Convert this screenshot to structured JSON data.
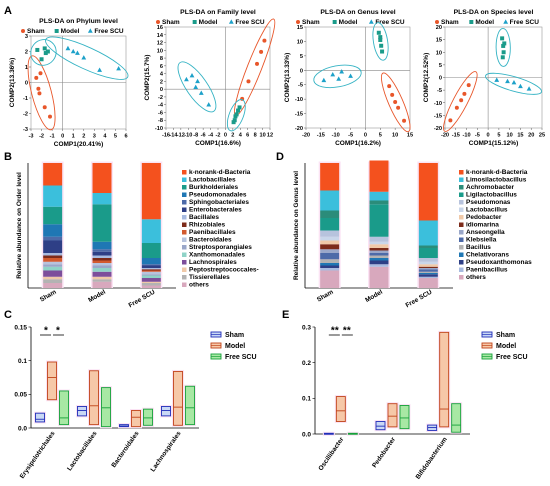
{
  "panel_letters": [
    "A",
    "B",
    "C",
    "D",
    "E"
  ],
  "chart_data": [
    {
      "id": "pls-phylum",
      "type": "scatter",
      "title": "PLS-DA on Phylum level",
      "xlabel": "COMP1(20.41%)",
      "ylabel": "COMP2(13.36%)",
      "xlim": [
        -3,
        6
      ],
      "ylim": [
        -3,
        3
      ],
      "xticks": [
        -3,
        -2,
        -1,
        0,
        1,
        2,
        3,
        4,
        5,
        6
      ],
      "yticks": [
        -3,
        -2,
        -1,
        0,
        1,
        2,
        3
      ],
      "legend": [
        "Sham",
        "Model",
        "Free SCU"
      ],
      "series": [
        {
          "name": "Sham",
          "marker": "circle",
          "points": [
            [
              -2.1,
              0.6
            ],
            [
              -2.5,
              0.3
            ],
            [
              -2.2,
              -0.7
            ],
            [
              -1.2,
              -2.2
            ],
            [
              -1.7,
              -1.6
            ],
            [
              -2.3,
              -0.4
            ]
          ]
        },
        {
          "name": "Model",
          "marker": "square",
          "points": [
            [
              -2.4,
              2.1
            ],
            [
              -1.7,
              2.2
            ],
            [
              -1.6,
              1.9
            ],
            [
              -2.0,
              1.5
            ],
            [
              -1.4,
              2.0
            ]
          ]
        },
        {
          "name": "Free SCU",
          "marker": "triangle",
          "points": [
            [
              1.0,
              2.0
            ],
            [
              1.4,
              1.9
            ],
            [
              2.0,
              1.6
            ],
            [
              3.5,
              0.8
            ],
            [
              5.3,
              0.9
            ],
            [
              0.5,
              2.2
            ]
          ]
        }
      ]
    },
    {
      "id": "pls-family",
      "type": "scatter",
      "title": "PLS-DA on Family level",
      "xlabel": "COMP1(16.6%)",
      "ylabel": "COMP2(15.7%)",
      "xlim": [
        -16,
        12
      ],
      "ylim": [
        -10,
        16
      ],
      "xticks": [
        -16,
        -14,
        -12,
        -10,
        -8,
        -6,
        -4,
        -2,
        0,
        2,
        4,
        6,
        8,
        10,
        12
      ],
      "yticks": [
        -10,
        -8,
        -6,
        -4,
        -2,
        0,
        2,
        4,
        6,
        8,
        10,
        12,
        14,
        16
      ],
      "legend": [
        "Sham",
        "Model",
        "Free SCU"
      ],
      "series": [
        {
          "name": "Sham",
          "marker": "circle",
          "points": [
            [
              4.5,
              -2.5
            ],
            [
              6.2,
              2.0
            ],
            [
              8.5,
              6.5
            ],
            [
              10.5,
              12.5
            ],
            [
              9.6,
              9.6
            ]
          ]
        },
        {
          "name": "Model",
          "marker": "square",
          "points": [
            [
              2.5,
              -8.0
            ],
            [
              3.0,
              -6.5
            ],
            [
              3.4,
              -5.5
            ],
            [
              2.7,
              -7.0
            ],
            [
              3.8,
              -4.7
            ],
            [
              2.2,
              -8.5
            ]
          ]
        },
        {
          "name": "Free SCU",
          "marker": "triangle",
          "points": [
            [
              -10.5,
              2.5
            ],
            [
              -9.0,
              3.5
            ],
            [
              -7.5,
              2.0
            ],
            [
              -6.5,
              -1.0
            ],
            [
              -4.5,
              -4.0
            ],
            [
              -8.0,
              0.5
            ]
          ]
        }
      ]
    },
    {
      "id": "pls-genus",
      "type": "scatter",
      "title": "PLS-DA on Genus level",
      "xlabel": "COMP1(16.2%)",
      "ylabel": "COMP2(13.33%)",
      "xlim": [
        -20,
        15
      ],
      "ylim": [
        -20,
        15
      ],
      "xticks": [
        -20,
        -15,
        -10,
        -5,
        0,
        5,
        10,
        15
      ],
      "yticks": [
        -20,
        -15,
        -10,
        -5,
        0,
        5,
        10,
        15
      ],
      "legend": [
        "Sham",
        "Model",
        "Free SCU"
      ],
      "series": [
        {
          "name": "Sham",
          "marker": "circle",
          "points": [
            [
              8.0,
              -5.5
            ],
            [
              9.0,
              -8.5
            ],
            [
              11.0,
              -13.0
            ],
            [
              13.0,
              -17.5
            ],
            [
              10.0,
              -11.0
            ]
          ]
        },
        {
          "name": "Model",
          "marker": "square",
          "points": [
            [
              4.5,
              13.0
            ],
            [
              5.0,
              10.5
            ],
            [
              5.3,
              8.5
            ],
            [
              5.6,
              6.5
            ],
            [
              5.0,
              11.5
            ]
          ]
        },
        {
          "name": "Free SCU",
          "marker": "triangle",
          "points": [
            [
              -14.0,
              -3.5
            ],
            [
              -11.0,
              -1.5
            ],
            [
              -8.0,
              -0.5
            ],
            [
              -5.0,
              -2.0
            ],
            [
              -9.0,
              -3.0
            ]
          ]
        }
      ]
    },
    {
      "id": "pls-species",
      "type": "scatter",
      "title": "PLS-DA on Species level",
      "xlabel": "COMP1(15.12%)",
      "ylabel": "COMP2(12.52%)",
      "xlim": [
        -20,
        25
      ],
      "ylim": [
        -20,
        20
      ],
      "xticks": [
        -20,
        -15,
        -10,
        -5,
        0,
        5,
        10,
        15,
        20,
        25
      ],
      "yticks": [
        -20,
        -15,
        -10,
        -5,
        0,
        5,
        10,
        15,
        20
      ],
      "legend": [
        "Sham",
        "Model",
        "Free SCU"
      ],
      "series": [
        {
          "name": "Sham",
          "marker": "circle",
          "points": [
            [
              -9.0,
              -3.0
            ],
            [
              -11.0,
              -6.5
            ],
            [
              -14.5,
              -12.0
            ],
            [
              -17.5,
              -17.0
            ],
            [
              -12.5,
              -9.0
            ]
          ]
        },
        {
          "name": "Model",
          "marker": "square",
          "points": [
            [
              6.5,
              15.5
            ],
            [
              7.0,
              12.5
            ],
            [
              7.2,
              10.0
            ],
            [
              6.8,
              8.0
            ],
            [
              7.5,
              13.5
            ]
          ]
        },
        {
          "name": "Free SCU",
          "marker": "triangle",
          "points": [
            [
              4.0,
              -1.0
            ],
            [
              9.0,
              -1.5
            ],
            [
              15.0,
              -3.5
            ],
            [
              19.0,
              -4.5
            ],
            [
              12.0,
              -2.0
            ]
          ]
        }
      ]
    },
    {
      "id": "bar-order",
      "type": "bar",
      "stacked": true,
      "ylabel": "Relative abundance on Order level",
      "categories": [
        "Sham",
        "Model",
        "Free SCU"
      ],
      "ylim": [
        0,
        1
      ],
      "series": [
        {
          "name": "others",
          "color": "#d8a8bd",
          "values": [
            0.04,
            0.05,
            0.02
          ]
        },
        {
          "name": "Tissierellales",
          "color": "#b3b3b3",
          "values": [
            0.03,
            0.02,
            0.02
          ]
        },
        {
          "name": "Peptostreptococcales-",
          "color": "#f0c9a8",
          "values": [
            0.02,
            0.02,
            0.01
          ]
        },
        {
          "name": "Lachnospirales",
          "color": "#7d4e9b",
          "values": [
            0.05,
            0.04,
            0.03
          ]
        },
        {
          "name": "Xanthomonadales",
          "color": "#8fd3c7",
          "values": [
            0.03,
            0.03,
            0.02
          ]
        },
        {
          "name": "Streptosporangiales",
          "color": "#9aa7c9",
          "values": [
            0.02,
            0.02,
            0.01
          ]
        },
        {
          "name": "Bacteroidales",
          "color": "#b7c3dd",
          "values": [
            0.02,
            0.02,
            0.02
          ]
        },
        {
          "name": "Paenibacillales",
          "color": "#d25a2e",
          "values": [
            0.03,
            0.02,
            0.01
          ]
        },
        {
          "name": "Rhizobiales",
          "color": "#7d2b1a",
          "values": [
            0.02,
            0.02,
            0.01
          ]
        },
        {
          "name": "Bacillales",
          "color": "#a8bbe0",
          "values": [
            0.02,
            0.02,
            0.01
          ]
        },
        {
          "name": "Enterobacterales",
          "color": "#2e3f86",
          "values": [
            0.1,
            0.03,
            0.02
          ]
        },
        {
          "name": "Sphingobacteriales",
          "color": "#4d6aa8",
          "values": [
            0.03,
            0.02,
            0.01
          ]
        },
        {
          "name": "Pseudomonadales",
          "color": "#1f77b4",
          "values": [
            0.1,
            0.06,
            0.05
          ]
        },
        {
          "name": "Burkholderiales",
          "color": "#1a9b8a",
          "values": [
            0.14,
            0.3,
            0.12
          ]
        },
        {
          "name": "Lactobacillales",
          "color": "#3bbfdc",
          "values": [
            0.17,
            0.09,
            0.19
          ]
        },
        {
          "name": "k-norank-d-Bacteria",
          "color": "#f4511e",
          "values": [
            0.18,
            0.24,
            0.45
          ]
        }
      ],
      "legend_order": [
        "k-norank-d-Bacteria",
        "Lactobacillales",
        "Burkholderiales",
        "Pseudomonadales",
        "Sphingobacteriales",
        "Enterobacterales",
        "Bacillales",
        "Rhizobiales",
        "Paenibacillales",
        "Bacteroidales",
        "Streptosporangiales",
        "Xanthomonadales",
        "Lachnospirales",
        "Peptostreptococcales-",
        "Tissierellales",
        "others"
      ]
    },
    {
      "id": "bar-genus",
      "type": "bar",
      "stacked": true,
      "ylabel": "Relative abundance on Genus level",
      "categories": [
        "Sham",
        "Model",
        "Free SCU"
      ],
      "ylim": [
        0,
        1
      ],
      "series": [
        {
          "name": "others",
          "color": "#d8a8bd",
          "values": [
            0.14,
            0.17,
            0.08
          ]
        },
        {
          "name": "Paenibacillus",
          "color": "#a8bbe0",
          "values": [
            0.02,
            0.02,
            0.01
          ]
        },
        {
          "name": "Pseudoxanthomonas",
          "color": "#2e3f86",
          "values": [
            0.02,
            0.03,
            0.02
          ]
        },
        {
          "name": "Chelativorans",
          "color": "#1f77b4",
          "values": [
            0.02,
            0.02,
            0.01
          ]
        },
        {
          "name": "Bacillus",
          "color": "#b3b3b3",
          "values": [
            0.03,
            0.02,
            0.01
          ]
        },
        {
          "name": "Klebsiella",
          "color": "#4d6aa8",
          "values": [
            0.05,
            0.02,
            0.02
          ]
        },
        {
          "name": "Anseongella",
          "color": "#9aa7c9",
          "values": [
            0.03,
            0.02,
            0.01
          ]
        },
        {
          "name": "idiomarina",
          "color": "#7d2b1a",
          "values": [
            0.04,
            0.02,
            0.01
          ]
        },
        {
          "name": "Pedobacter",
          "color": "#f0c9a8",
          "values": [
            0.03,
            0.03,
            0.02
          ]
        },
        {
          "name": "Lactobacillus",
          "color": "#c9d6ea",
          "values": [
            0.03,
            0.02,
            0.02
          ]
        },
        {
          "name": "Pseudomonas",
          "color": "#b7c3dd",
          "values": [
            0.05,
            0.04,
            0.03
          ]
        },
        {
          "name": "Ligilactobacillus",
          "color": "#1a9b8a",
          "values": [
            0.1,
            0.26,
            0.08
          ]
        },
        {
          "name": "Achromobacter",
          "color": "#2b8c7a",
          "values": [
            0.06,
            0.03,
            0.02
          ]
        },
        {
          "name": "Limosilactobacillus",
          "color": "#3bbfdc",
          "values": [
            0.16,
            0.07,
            0.2
          ]
        },
        {
          "name": "k-norank-d-Bacteria",
          "color": "#f4511e",
          "values": [
            0.22,
            0.25,
            0.46
          ]
        }
      ],
      "legend_order": [
        "k-norank-d-Bacteria",
        "Limosilactobacillus",
        "Achromobacter",
        "Ligilactobacillus",
        "Pseudomonas",
        "Lactobacillus",
        "Pedobacter",
        "idiomarina",
        "Anseongella",
        "Klebsiella",
        "Bacillus",
        "Chelativorans",
        "Pseudoxanthomonas",
        "Paenibacillus",
        "others"
      ]
    },
    {
      "id": "box-order",
      "type": "box",
      "categories": [
        "Erysipelotrichales",
        "Lactobacillales",
        "Bacteroidales",
        "Lachnospirales"
      ],
      "ylim": [
        0,
        0.15
      ],
      "yticks": [
        0.0,
        0.05,
        0.1,
        0.15
      ],
      "legend": [
        "Sham",
        "Model",
        "Free SCU"
      ],
      "series": [
        {
          "name": "Sham",
          "values": [
            [
              0.009,
              0.013,
              0.022
            ],
            [
              0.018,
              0.026,
              0.032
            ],
            [
              0.002,
              0.003,
              0.005
            ],
            [
              0.018,
              0.026,
              0.032
            ]
          ]
        },
        {
          "name": "Model",
          "values": [
            [
              0.042,
              0.075,
              0.098
            ],
            [
              0.005,
              0.033,
              0.085
            ],
            [
              0.002,
              0.016,
              0.026
            ],
            [
              0.004,
              0.031,
              0.084
            ]
          ]
        },
        {
          "name": "Free SCU",
          "values": [
            [
              0.005,
              0.015,
              0.055
            ],
            [
              0.002,
              0.03,
              0.06
            ],
            [
              0.004,
              0.015,
              0.028
            ],
            [
              0.005,
              0.03,
              0.062
            ]
          ]
        }
      ],
      "annotations": [
        "*",
        "*"
      ]
    },
    {
      "id": "box-genus",
      "type": "box",
      "categories": [
        "Oscillibacter",
        "Pedobacter",
        "Bifidobacterium"
      ],
      "ylim": [
        0,
        0.3
      ],
      "yticks": [
        0.0,
        0.1,
        0.2,
        0.3
      ],
      "legend": [
        "Sham",
        "Model",
        "Free SCU"
      ],
      "series": [
        {
          "name": "Sham",
          "values": [
            [
              0.0,
              0.0,
              0.002
            ],
            [
              0.012,
              0.022,
              0.035
            ],
            [
              0.01,
              0.018,
              0.025
            ]
          ]
        },
        {
          "name": "Model",
          "values": [
            [
              0.035,
              0.065,
              0.105
            ],
            [
              0.02,
              0.05,
              0.085
            ],
            [
              0.02,
              0.07,
              0.285
            ]
          ]
        },
        {
          "name": "Free SCU",
          "values": [
            [
              0.0,
              0.001,
              0.002
            ],
            [
              0.015,
              0.045,
              0.08
            ],
            [
              0.005,
              0.025,
              0.085
            ]
          ]
        }
      ],
      "annotations": [
        "**",
        "**"
      ]
    }
  ]
}
